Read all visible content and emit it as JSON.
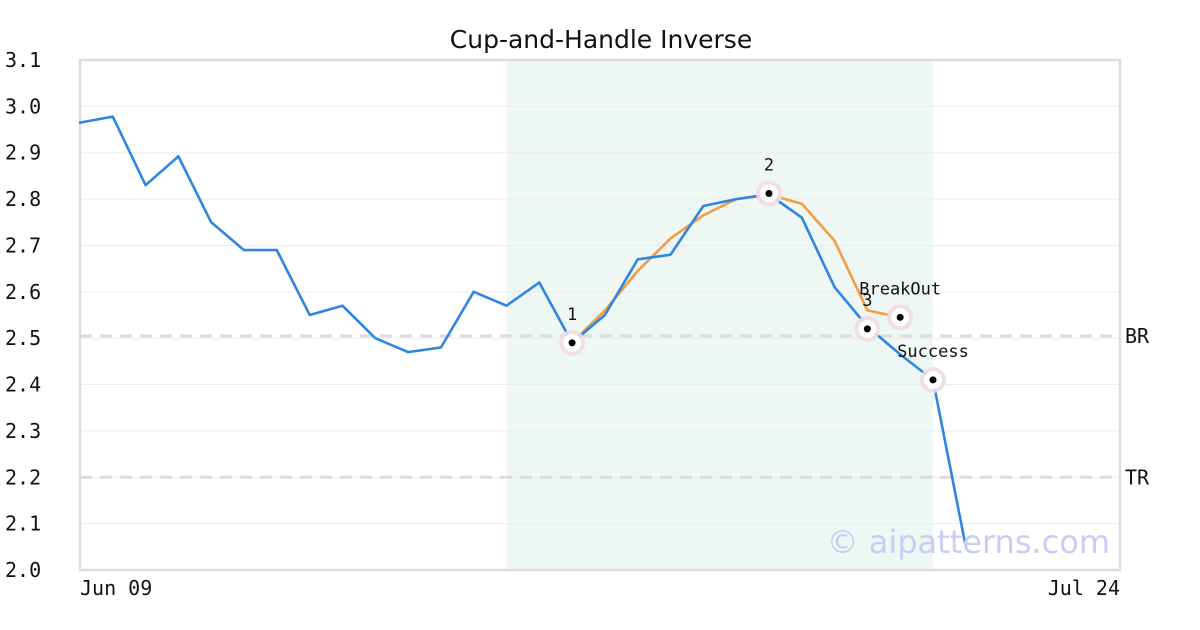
{
  "chart_data": {
    "type": "line",
    "title": "Cup-and-Handle Inverse",
    "ylim": [
      2.0,
      3.1
    ],
    "y_ticks": [
      "3.1",
      "3.0",
      "2.9",
      "2.8",
      "2.7",
      "2.6",
      "2.5",
      "2.4",
      "2.3",
      "2.2",
      "2.1",
      "2.0"
    ],
    "x_tick_labels": [
      "Jun 09",
      "Jul 24"
    ],
    "grid": true,
    "series": [
      {
        "color": "#2f86e0",
        "values": [
          2.965,
          2.978,
          2.83,
          2.892,
          2.75,
          2.69,
          2.69,
          2.55,
          2.57,
          2.5,
          2.47,
          2.48,
          2.6,
          2.57,
          2.62,
          2.49,
          2.55,
          2.67,
          2.68,
          2.785,
          2.8,
          2.81,
          2.76,
          2.61,
          2.525,
          2.465,
          2.41,
          2.05
        ]
      },
      {
        "color": "#f39c43",
        "start_index": 15,
        "values": [
          2.49,
          2.56,
          2.645,
          2.715,
          2.765,
          2.8,
          2.81,
          2.79,
          2.71,
          2.56,
          2.545
        ]
      }
    ],
    "shaded_region": {
      "from_index": 13,
      "to_index": 26,
      "color": "#eef7f3"
    },
    "levels": [
      {
        "label": "BR",
        "value": 2.505
      },
      {
        "label": "TR",
        "value": 2.2
      }
    ],
    "points": [
      {
        "label": "1",
        "index": 15,
        "value": 2.49,
        "label_pos": "above"
      },
      {
        "label": "2",
        "index": 21,
        "value": 2.812,
        "label_pos": "above"
      },
      {
        "label": "3",
        "index": 24,
        "value": 2.52,
        "label_pos": "above"
      },
      {
        "label": "BreakOut",
        "index": 25,
        "value": 2.545,
        "label_pos": "above"
      },
      {
        "label": "Success",
        "index": 26,
        "value": 2.41,
        "label_pos": "above"
      }
    ]
  },
  "watermark": "© aipatterns.com"
}
